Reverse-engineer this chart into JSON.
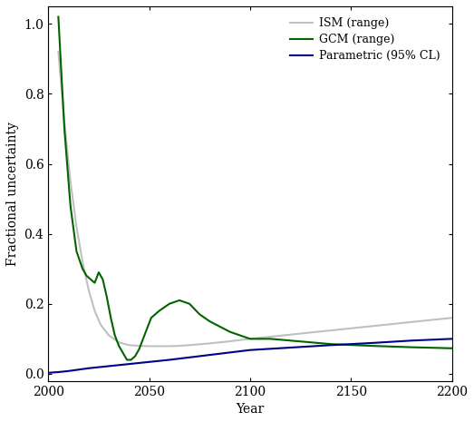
{
  "title": "",
  "xlabel": "Year",
  "ylabel": "Fractional uncertainty",
  "xlim": [
    2000,
    2200
  ],
  "ylim": [
    -0.02,
    1.05
  ],
  "xticks": [
    2000,
    2050,
    2100,
    2150,
    2200
  ],
  "yticks": [
    0.0,
    0.2,
    0.4,
    0.6,
    0.8,
    1.0
  ],
  "background_color": "#ffffff",
  "legend": {
    "entries": [
      "Parametric (95% CL)",
      "GCM (range)",
      "ISM (range)"
    ],
    "colors": [
      "#00008B",
      "#006400",
      "#C0C0C0"
    ],
    "loc": "upper right"
  },
  "parametric": {
    "x": [
      2000,
      2005,
      2010,
      2015,
      2020,
      2025,
      2030,
      2035,
      2040,
      2045,
      2050,
      2060,
      2070,
      2080,
      2090,
      2100,
      2120,
      2140,
      2160,
      2180,
      2200
    ],
    "y": [
      0.003,
      0.005,
      0.008,
      0.012,
      0.016,
      0.019,
      0.022,
      0.025,
      0.028,
      0.031,
      0.034,
      0.04,
      0.047,
      0.054,
      0.061,
      0.068,
      0.075,
      0.082,
      0.088,
      0.095,
      0.1
    ],
    "color": "#00008B",
    "linewidth": 1.5
  },
  "gcm": {
    "x": [
      2005,
      2008,
      2011,
      2014,
      2017,
      2019,
      2021,
      2023,
      2025,
      2027,
      2029,
      2031,
      2033,
      2035,
      2037,
      2039,
      2041,
      2043,
      2045,
      2047,
      2049,
      2051,
      2055,
      2060,
      2065,
      2070,
      2075,
      2080,
      2090,
      2100,
      2110,
      2120,
      2130,
      2140,
      2160,
      2180,
      2200
    ],
    "y": [
      1.02,
      0.7,
      0.48,
      0.35,
      0.3,
      0.28,
      0.27,
      0.26,
      0.29,
      0.27,
      0.22,
      0.16,
      0.11,
      0.08,
      0.06,
      0.04,
      0.04,
      0.05,
      0.07,
      0.1,
      0.13,
      0.16,
      0.18,
      0.2,
      0.21,
      0.2,
      0.17,
      0.15,
      0.12,
      0.1,
      0.1,
      0.095,
      0.09,
      0.085,
      0.08,
      0.076,
      0.073
    ],
    "color": "#006400",
    "linewidth": 1.5
  },
  "ism": {
    "x": [
      2005,
      2008,
      2011,
      2014,
      2017,
      2020,
      2023,
      2026,
      2030,
      2035,
      2040,
      2045,
      2050,
      2055,
      2060,
      2065,
      2070,
      2080,
      2090,
      2100,
      2110,
      2120,
      2130,
      2140,
      2150,
      2160,
      2170,
      2180,
      2190,
      2200
    ],
    "y": [
      0.92,
      0.72,
      0.55,
      0.42,
      0.32,
      0.24,
      0.18,
      0.14,
      0.11,
      0.09,
      0.082,
      0.08,
      0.079,
      0.079,
      0.079,
      0.08,
      0.082,
      0.087,
      0.093,
      0.1,
      0.106,
      0.112,
      0.118,
      0.124,
      0.13,
      0.136,
      0.142,
      0.148,
      0.154,
      0.16
    ],
    "color": "#C0C0C0",
    "linewidth": 1.5
  }
}
